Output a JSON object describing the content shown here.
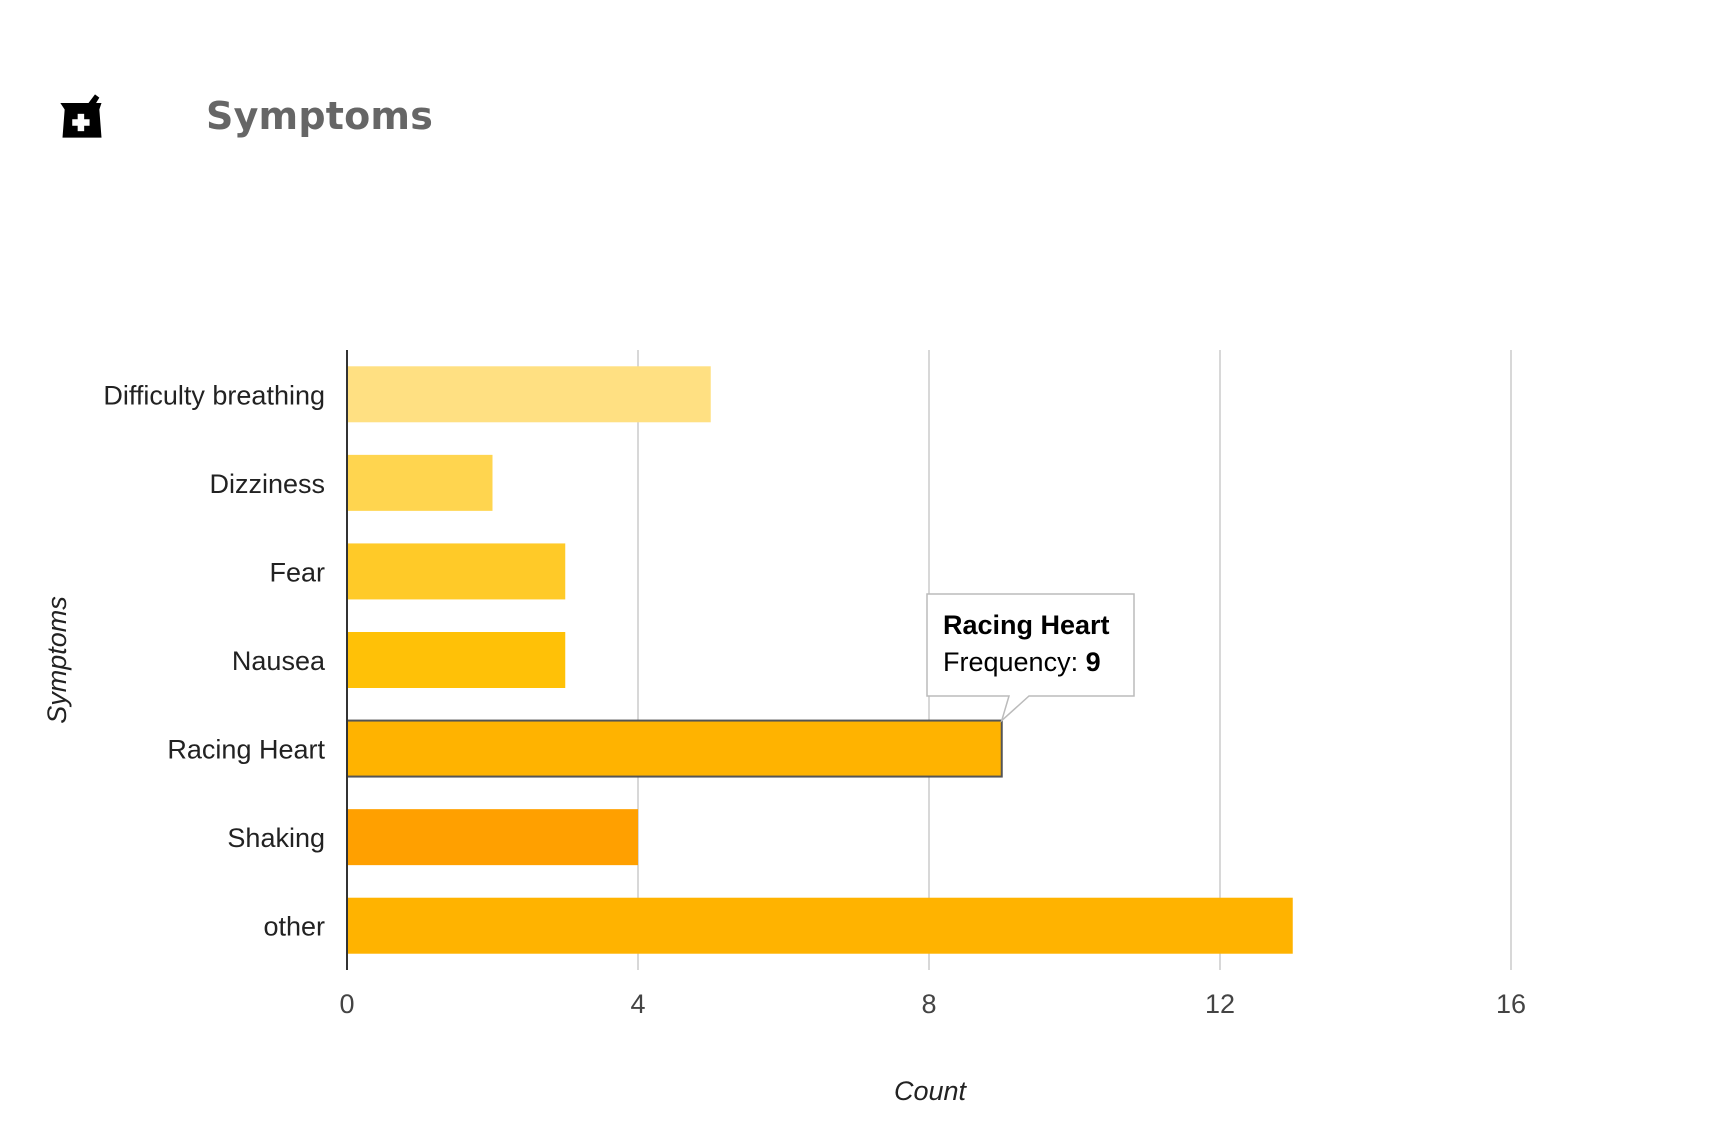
{
  "header": {
    "title": "Symptoms",
    "icon": "pharmacy-mortar-pestle-icon"
  },
  "chart_data": {
    "type": "bar",
    "orientation": "horizontal",
    "categories": [
      "Difficulty breathing",
      "Dizziness",
      "Fear",
      "Nausea",
      "Racing Heart",
      "Shaking",
      "other"
    ],
    "values": [
      5,
      2,
      3,
      3,
      9,
      4,
      13
    ],
    "colors": [
      "#FFE082",
      "#FFD54F",
      "#FFCA28",
      "#FFC107",
      "#FFB300",
      "#FFA000",
      "#FFB300"
    ],
    "xlabel": "Count",
    "ylabel": "Symptoms",
    "xlim": [
      0,
      16
    ],
    "xticks": [
      0,
      4,
      8,
      12,
      16
    ],
    "grid": true,
    "tooltip": {
      "category": "Racing Heart",
      "label": "Frequency: ",
      "value": "9"
    }
  }
}
